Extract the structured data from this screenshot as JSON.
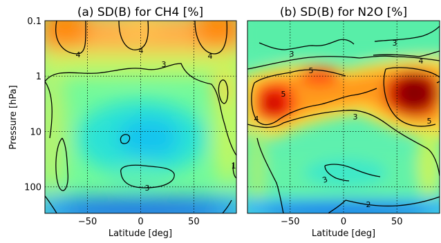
{
  "colors": {
    "contour_line": "#000000",
    "grid": "#000000",
    "colormap": "jet"
  },
  "chart_data": [
    {
      "type": "heatmap",
      "title": "(a) SD(B) for CH4 [%]",
      "xlabel": "Latitude [deg]",
      "ylabel": "Pressure [hPa]",
      "xlim": [
        -90,
        90
      ],
      "ylim": [
        300,
        0.1
      ],
      "y_scale": "log",
      "y_inverted": true,
      "grid": true,
      "x_ticks": [
        "−50",
        "0",
        "50"
      ],
      "y_ticks": [
        "0.1",
        "1",
        "10",
        "100"
      ],
      "contour_labels": [
        "4",
        "4",
        "4",
        "3",
        "3",
        "1"
      ]
    },
    {
      "type": "heatmap",
      "title": "(b) SD(B) for N2O [%]",
      "xlabel": "Latitude [deg]",
      "xlim": [
        -90,
        90
      ],
      "ylim": [
        300,
        0.1
      ],
      "y_scale": "log",
      "y_inverted": true,
      "grid": true,
      "x_ticks": [
        "−50",
        "0",
        "50"
      ],
      "contour_labels": [
        "3",
        "3",
        "5",
        "5",
        "4",
        "3",
        "4",
        "5",
        "3",
        "2"
      ]
    }
  ]
}
